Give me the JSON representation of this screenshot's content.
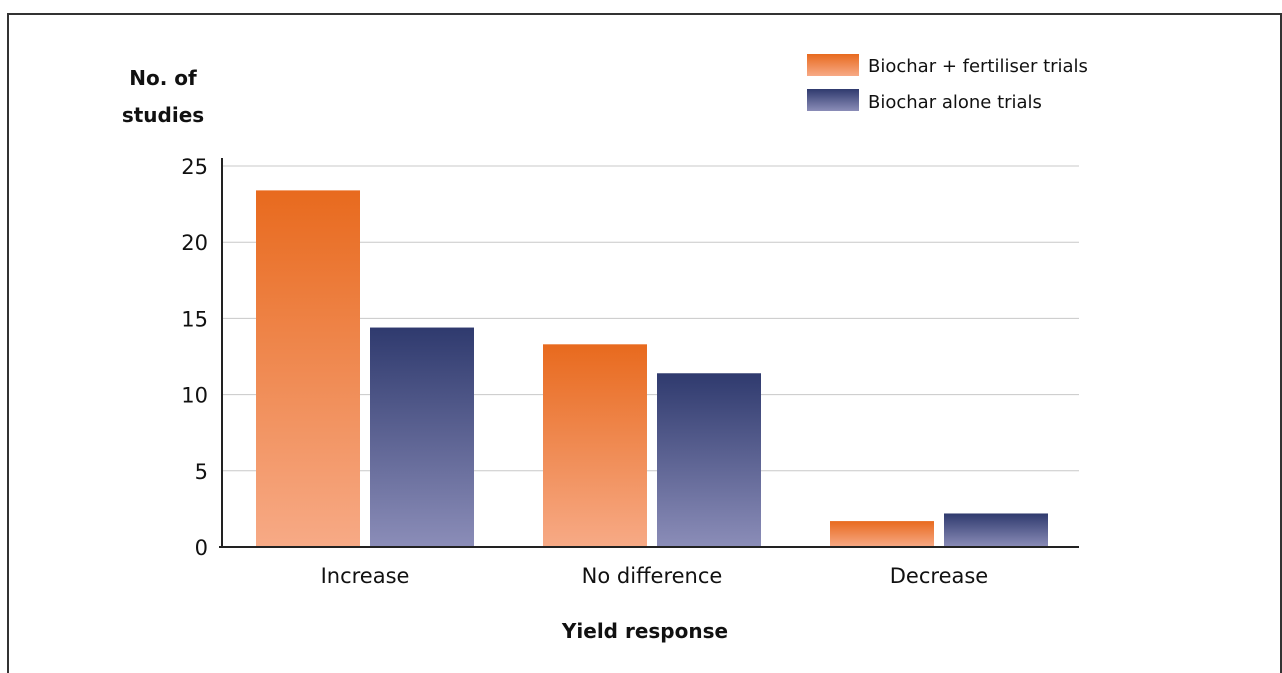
{
  "chart_data": {
    "type": "bar",
    "title": "",
    "xlabel": "Yield response",
    "ylabel_lines": [
      "No. of",
      "studies"
    ],
    "categories": [
      "Increase",
      "No difference",
      "Decrease"
    ],
    "series": [
      {
        "name": "Biochar + fertiliser trials",
        "values": [
          23.4,
          13.3,
          1.7
        ],
        "color_top": "#e86a1e",
        "color_bottom": "#f7aa86"
      },
      {
        "name": "Biochar  alone trials",
        "values": [
          14.4,
          11.4,
          2.2
        ],
        "color_top": "#2f3a6e",
        "color_bottom": "#8b8db8"
      }
    ],
    "ylim": [
      0,
      25
    ],
    "yticks": [
      0,
      5,
      10,
      15,
      20,
      25
    ],
    "grid": true,
    "legend_position": "top-right"
  }
}
